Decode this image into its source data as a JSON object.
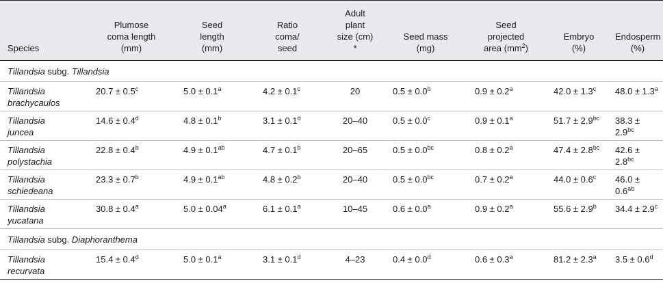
{
  "headers": {
    "species": "Species",
    "plumose": [
      "Plumose",
      "coma length",
      "(mm)"
    ],
    "seed_length": [
      "Seed",
      "length",
      "(mm)"
    ],
    "ratio": [
      "Ratio",
      "coma/",
      "seed"
    ],
    "adult": [
      "Adult",
      "plant",
      "size (cm)",
      "*"
    ],
    "seed_mass": [
      "Seed mass",
      "(mg)"
    ],
    "projected": [
      "Seed",
      "projected",
      "area (mm",
      "2",
      ")"
    ],
    "embryo": [
      "Embryo",
      "(%)"
    ],
    "endosperm": [
      "Endosperm",
      "(%)"
    ]
  },
  "groups": [
    {
      "label_genus": "Tillandsia",
      "label_mid": " subg. ",
      "label_sub": "Tillandsia",
      "rows": [
        {
          "genus": "Tillandsia",
          "epithet": "brachycaulos",
          "plumose": "20.7 ± 0.5",
          "plumose_sup": "c",
          "seed_length": "5.0 ± 0.1",
          "seed_length_sup": "a",
          "ratio": "4.2 ± 0.1",
          "ratio_sup": "c",
          "size": "20",
          "mass": "0.5 ± 0.0",
          "mass_sup": "b",
          "area": "0.9 ± 0.2",
          "area_sup": "a",
          "embryo": "42.0 ± 1.3",
          "embryo_sup": "c",
          "endosperm": "48.0 ± 1.3",
          "endosperm_sup": "a"
        },
        {
          "genus": "Tillandsia",
          "epithet": "juncea",
          "plumose": "14.6 ± 0.4",
          "plumose_sup": "d",
          "seed_length": "4.8 ± 0.1",
          "seed_length_sup": "b",
          "ratio": "3.1 ± 0.1",
          "ratio_sup": "d",
          "size": "20–40",
          "mass": "0.5 ± 0.0",
          "mass_sup": "c",
          "area": "0.9 ± 0.1",
          "area_sup": "a",
          "embryo": "51.7 ± 2.9",
          "embryo_sup": "bc",
          "endosperm": "38.3 ± 2.9",
          "endosperm_sup": "bc"
        },
        {
          "genus": "Tillandsia",
          "epithet": "polystachia",
          "plumose": "22.8 ± 0.4",
          "plumose_sup": "b",
          "seed_length": "4.9 ± 0.1",
          "seed_length_sup": "ab",
          "ratio": "4.7 ± 0.1",
          "ratio_sup": "b",
          "size": "20–65",
          "mass": "0.5 ± 0.0",
          "mass_sup": "bc",
          "area": "0.8 ± 0.2",
          "area_sup": "a",
          "embryo": "47.4 ± 2.8",
          "embryo_sup": "bc",
          "endosperm": "42.6 ± 2.8",
          "endosperm_sup": "bc"
        },
        {
          "genus": "Tillandsia",
          "epithet": "schiedeana",
          "plumose": "23.3 ± 0.7",
          "plumose_sup": "b",
          "seed_length": "4.9 ± 0.1",
          "seed_length_sup": "ab",
          "ratio": "4.8 ± 0.2",
          "ratio_sup": "b",
          "size": "20–40",
          "mass": "0.5 ± 0.0",
          "mass_sup": "bc",
          "area": "0.7 ± 0.2",
          "area_sup": "a",
          "embryo": "44.0 ± 0.6",
          "embryo_sup": "c",
          "endosperm": "46.0 ± 0.6",
          "endosperm_sup": "ab"
        },
        {
          "genus": "Tillandsia",
          "epithet": "yucatana",
          "plumose": "30.8 ± 0.4",
          "plumose_sup": "a",
          "seed_length": "5.0 ± 0.04",
          "seed_length_sup": "a",
          "ratio": "6.1 ± 0.1",
          "ratio_sup": "a",
          "size": "10–45",
          "mass": "0.6 ± 0.0",
          "mass_sup": "a",
          "area": "0.9 ± 0.2",
          "area_sup": "a",
          "embryo": "55.6 ± 2.9",
          "embryo_sup": "b",
          "endosperm": "34.4 ± 2.9",
          "endosperm_sup": "c"
        }
      ]
    },
    {
      "label_genus": "Tillandsia",
      "label_mid": " subg. ",
      "label_sub": "Diaphoranthema",
      "rows": [
        {
          "genus": "Tillandsia",
          "epithet": "recurvata",
          "plumose": "15.4 ± 0.4",
          "plumose_sup": "d",
          "seed_length": "5.0 ± 0.1",
          "seed_length_sup": "a",
          "ratio": "3.1 ± 0.1",
          "ratio_sup": "d",
          "size": "4–23",
          "mass": "0.4 ± 0.0",
          "mass_sup": "d",
          "area": "0.6 ± 0.3",
          "area_sup": "a",
          "embryo": "81.2 ± 2.3",
          "embryo_sup": "a",
          "endosperm": "3.5 ± 0.6",
          "endosperm_sup": "d"
        }
      ]
    }
  ]
}
